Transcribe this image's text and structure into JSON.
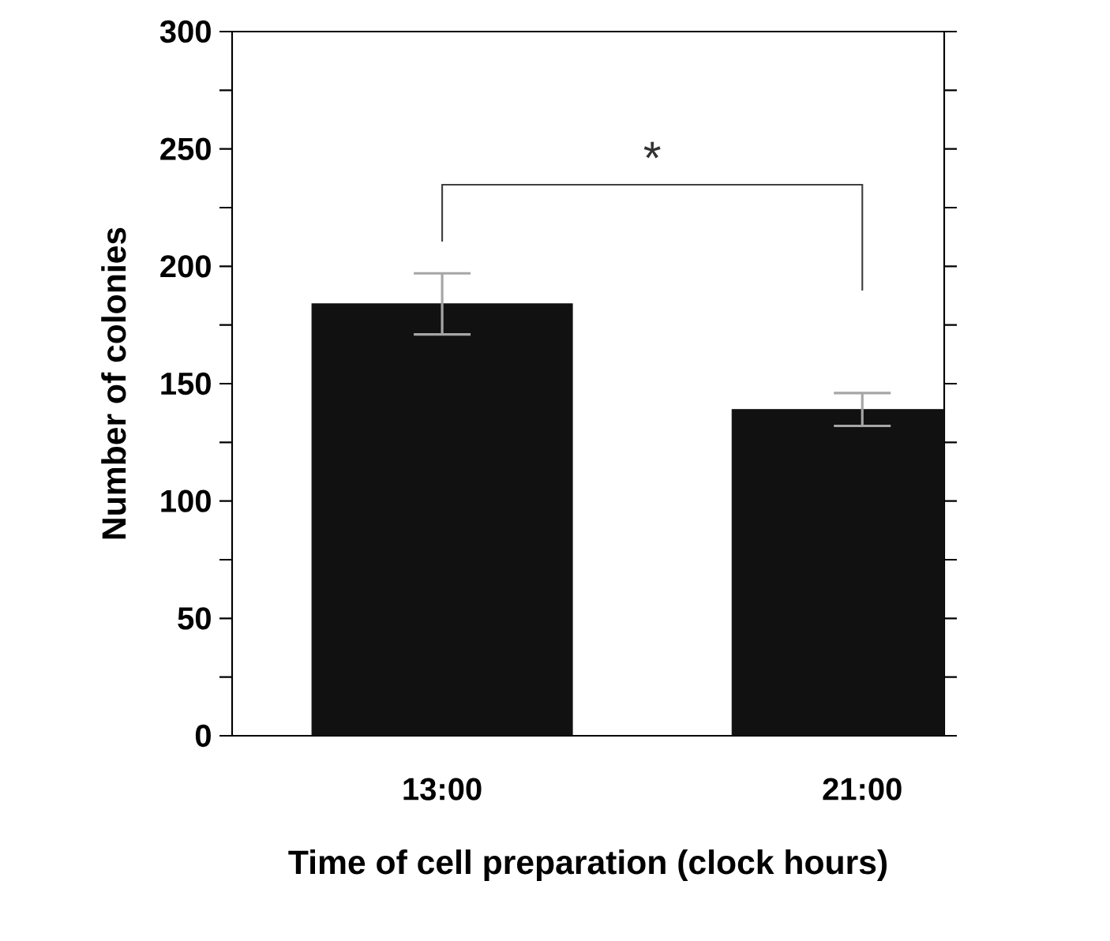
{
  "chart_data": {
    "type": "bar",
    "xlabel": "Time of cell preparation (clock hours)",
    "ylabel": "Number of colonies",
    "categories": [
      "13:00",
      "21:00"
    ],
    "values": [
      184,
      139
    ],
    "errors": [
      13,
      7
    ],
    "color": "#111111",
    "ylim": [
      0,
      300
    ],
    "yticks": [
      0,
      {
        "value": 25,
        "label": null
      },
      50,
      {
        "value": 75,
        "label": null
      },
      100,
      {
        "value": 125,
        "label": null
      },
      150,
      {
        "value": 175,
        "label": null
      },
      200,
      {
        "value": 225,
        "label": null
      },
      250,
      {
        "value": 275,
        "label": null
      },
      300
    ],
    "annotations": [
      "*"
    ],
    "grid": false
  }
}
